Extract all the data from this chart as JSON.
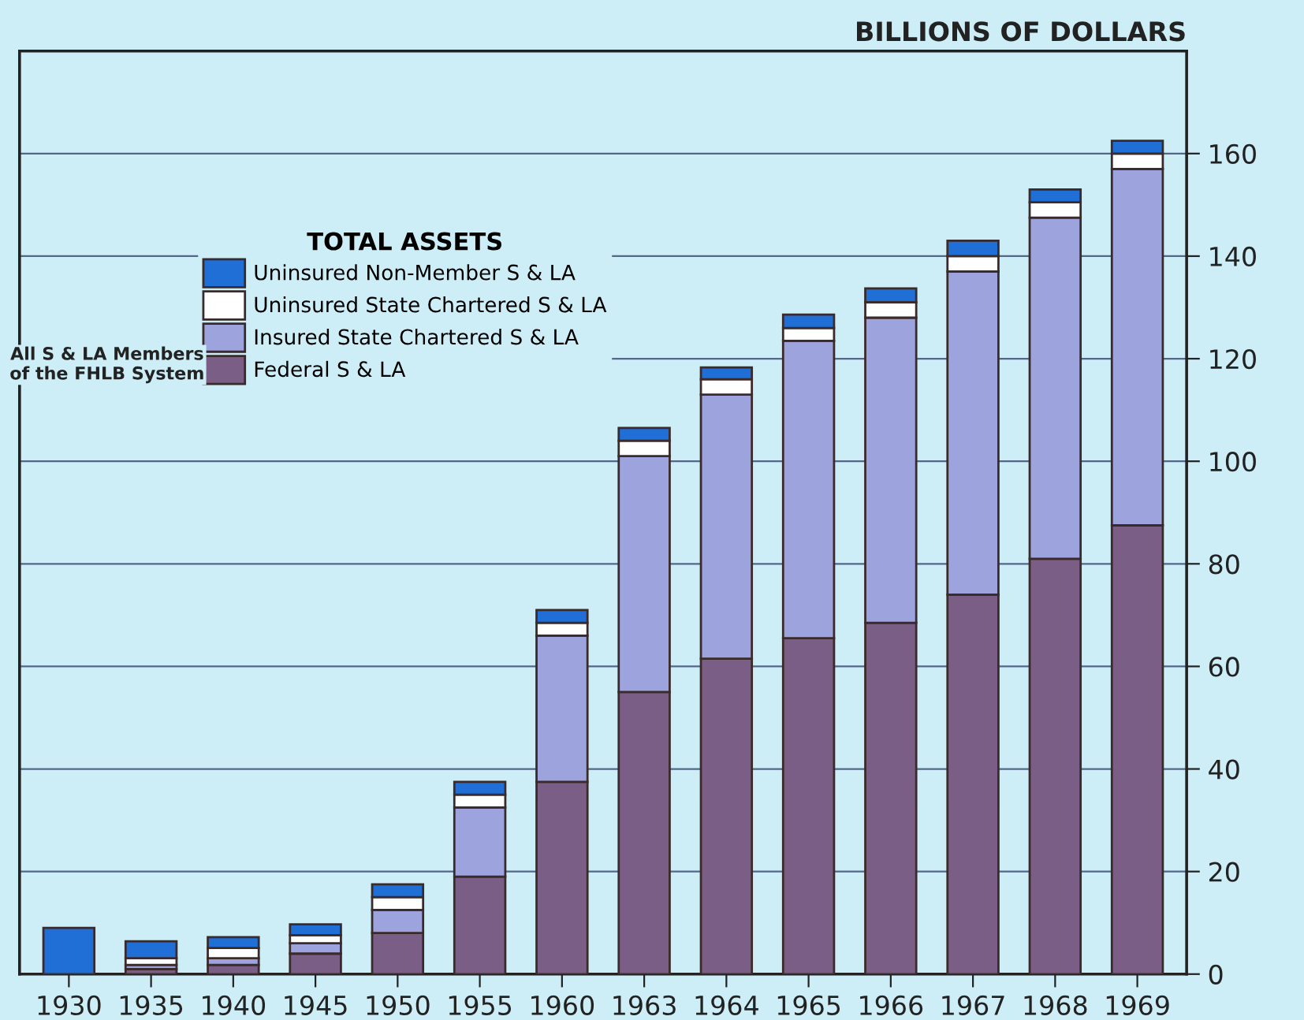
{
  "chart_data": {
    "type": "bar",
    "stacked": true,
    "ylabel": "BILLIONS OF DOLLARS",
    "legend_title": "TOTAL ASSETS",
    "categories": [
      "1930",
      "1935",
      "1940",
      "1945",
      "1950",
      "1955",
      "1960",
      "1963",
      "1964",
      "1965",
      "1966",
      "1967",
      "1968",
      "1969"
    ],
    "series": [
      {
        "name": "Federal S & LA",
        "color": "#7b5e86",
        "values": [
          0,
          1,
          1.8,
          4,
          8,
          19,
          37.5,
          55,
          61.5,
          65.5,
          68.5,
          74,
          81,
          87.5
        ]
      },
      {
        "name": "Insured State Chartered S & LA",
        "color": "#9da3dc",
        "values": [
          0,
          0.8,
          1.3,
          2,
          4.5,
          13.5,
          28.5,
          46,
          51.5,
          58,
          59.5,
          63,
          66.5,
          69.5
        ]
      },
      {
        "name": "Uninsured State Chartered S & LA",
        "color": "#ffffff",
        "values": [
          0,
          1.3,
          2,
          1.6,
          2.5,
          2.5,
          2.5,
          3,
          3,
          2.5,
          3,
          3,
          3,
          3
        ]
      },
      {
        "name": "Uninsured Non-Member S & LA",
        "color": "#1f6fd6",
        "values": [
          9,
          3.3,
          2.1,
          2.1,
          2.5,
          2.5,
          2.5,
          2.5,
          2.3,
          2.6,
          2.7,
          3,
          2.5,
          2.5
        ]
      }
    ],
    "ylim": [
      0,
      180
    ],
    "yticks": [
      0,
      20,
      40,
      60,
      80,
      100,
      120,
      140,
      160
    ],
    "grid": "y",
    "legend": "top left",
    "annotations": [
      "All S & LA Members of the FHLB System"
    ]
  }
}
